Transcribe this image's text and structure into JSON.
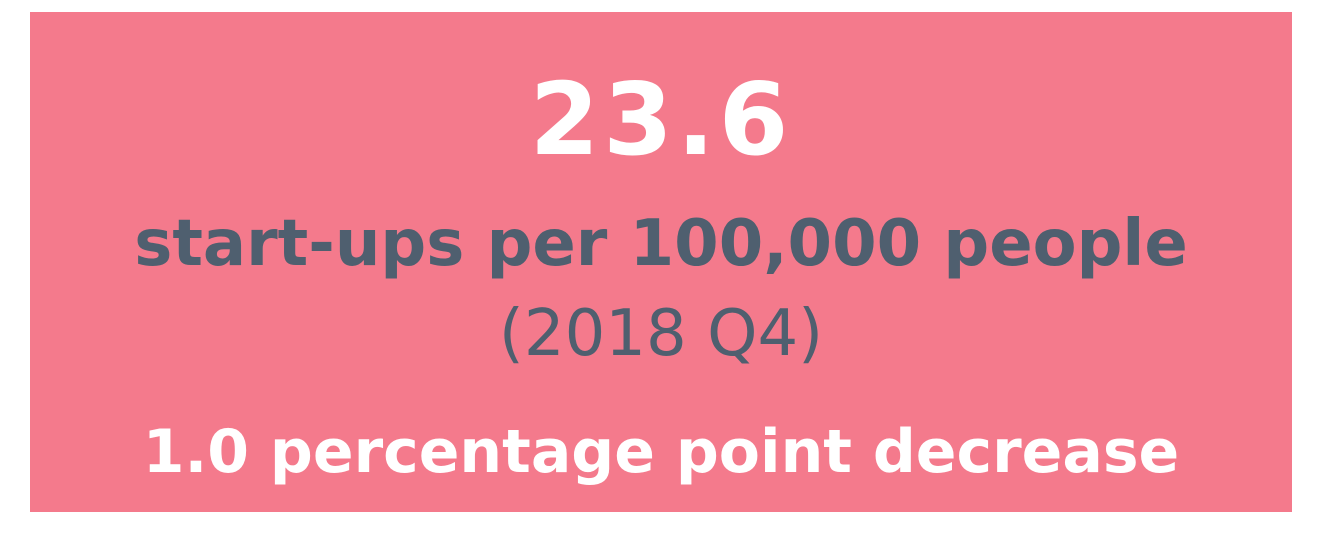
{
  "card": {
    "value": "23.6",
    "unit": "start-ups per 100,000 people",
    "period": "(2018 Q4)",
    "change": "1.0 percentage point decrease"
  }
}
